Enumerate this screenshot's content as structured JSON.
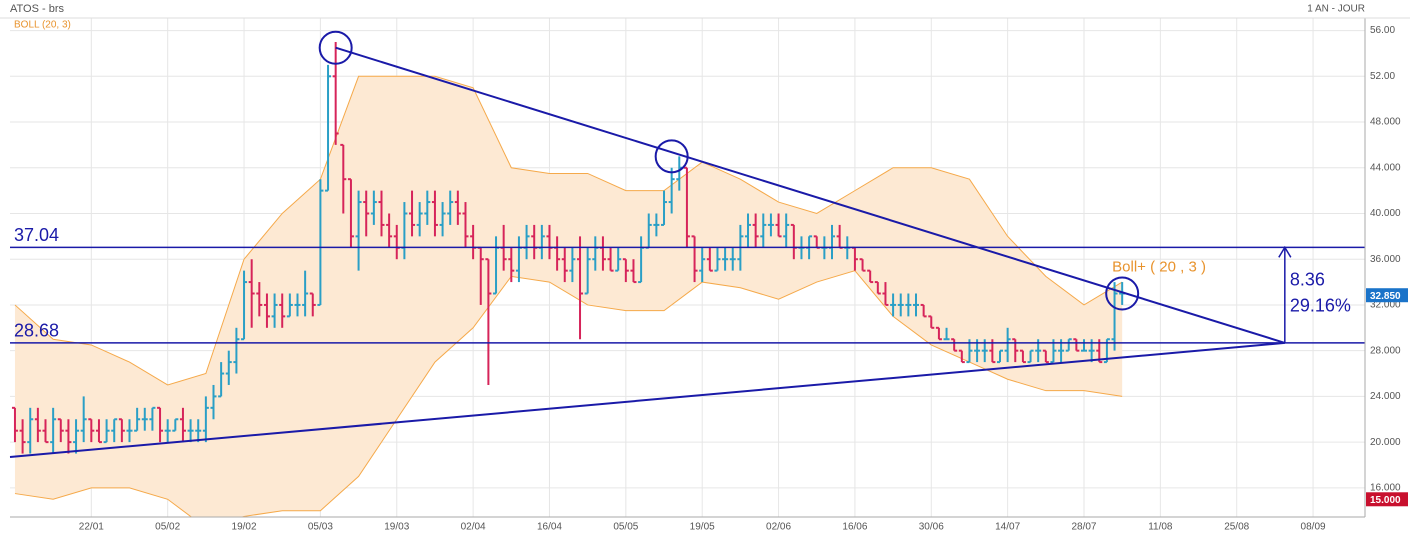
{
  "chart_data": {
    "type": "ohlc",
    "title": "ATOS - brs",
    "indicator_label": "BOLL (20, 3)",
    "period_label": "1 AN - JOUR",
    "up_color": "#2a9fc6",
    "down_color": "#d6245a",
    "band_color": "#f5a94a",
    "band_fill": "#fde9d3",
    "line_color": "#1a1aa8",
    "grid": true,
    "xlim": [
      -0.65,
      176.8
    ],
    "ylim": [
      13.45,
      57.1
    ],
    "xticks": [
      {
        "value": 10,
        "label": "22/01"
      },
      {
        "value": 20,
        "label": "05/02"
      },
      {
        "value": 30,
        "label": "19/02"
      },
      {
        "value": 40,
        "label": "05/03"
      },
      {
        "value": 50,
        "label": "19/03"
      },
      {
        "value": 60,
        "label": "02/04"
      },
      {
        "value": 70,
        "label": "16/04"
      },
      {
        "value": 80,
        "label": "05/05"
      },
      {
        "value": 90,
        "label": "19/05"
      },
      {
        "value": 100,
        "label": "02/06"
      },
      {
        "value": 110,
        "label": "16/06"
      },
      {
        "value": 120,
        "label": "30/06"
      },
      {
        "value": 130,
        "label": "14/07"
      },
      {
        "value": 140,
        "label": "28/07"
      },
      {
        "value": 150,
        "label": "11/08"
      },
      {
        "value": 160,
        "label": "25/08"
      },
      {
        "value": 170,
        "label": "08/09"
      }
    ],
    "yticks": [
      {
        "value": 56,
        "label": "56.00"
      },
      {
        "value": 52,
        "label": "52.00"
      },
      {
        "value": 48,
        "label": "48.000"
      },
      {
        "value": 44,
        "label": "44.000"
      },
      {
        "value": 40,
        "label": "40.000"
      },
      {
        "value": 36,
        "label": "36.000"
      },
      {
        "value": 32,
        "label": "32.000"
      },
      {
        "value": 28,
        "label": "28.000"
      },
      {
        "value": 24,
        "label": "24.000"
      },
      {
        "value": 20,
        "label": "20.000"
      },
      {
        "value": 16,
        "label": "16.000"
      }
    ],
    "ohlc": [
      [
        23,
        23,
        20,
        21
      ],
      [
        21,
        22,
        19,
        20
      ],
      [
        20,
        23,
        19,
        22
      ],
      [
        22,
        23,
        20,
        21
      ],
      [
        21,
        22,
        20,
        20
      ],
      [
        20,
        23,
        19,
        22
      ],
      [
        22,
        22,
        20,
        21
      ],
      [
        21,
        22,
        19,
        20
      ],
      [
        20,
        22,
        19,
        21
      ],
      [
        21,
        24,
        20,
        22
      ],
      [
        22,
        22,
        20,
        21
      ],
      [
        21,
        22,
        20,
        20
      ],
      [
        20,
        22,
        20,
        21
      ],
      [
        21,
        22,
        20,
        22
      ],
      [
        22,
        22,
        20,
        21
      ],
      [
        21,
        22,
        20,
        21
      ],
      [
        21,
        23,
        21,
        22
      ],
      [
        22,
        23,
        21,
        22
      ],
      [
        22,
        23,
        21,
        23
      ],
      [
        23,
        23,
        20,
        21
      ],
      [
        21,
        22,
        20,
        21
      ],
      [
        21,
        22,
        21,
        22
      ],
      [
        22,
        23,
        20,
        21
      ],
      [
        21,
        22,
        20,
        21
      ],
      [
        21,
        22,
        20,
        21
      ],
      [
        21,
        24,
        20,
        23
      ],
      [
        23,
        25,
        22,
        24
      ],
      [
        24,
        27,
        24,
        26
      ],
      [
        26,
        28,
        25,
        27
      ],
      [
        27,
        30,
        26,
        29
      ],
      [
        29,
        35,
        29,
        34
      ],
      [
        34,
        36,
        30,
        33
      ],
      [
        33,
        34,
        31,
        32
      ],
      [
        32,
        33,
        30,
        31
      ],
      [
        31,
        33,
        30,
        32
      ],
      [
        32,
        33,
        30,
        31
      ],
      [
        31,
        33,
        31,
        32
      ],
      [
        32,
        33,
        31,
        32
      ],
      [
        32,
        35,
        31,
        33
      ],
      [
        33,
        33,
        31,
        32
      ],
      [
        32,
        43,
        32,
        42
      ],
      [
        42,
        53,
        42,
        52
      ],
      [
        52,
        55,
        46,
        47
      ],
      [
        46,
        46,
        40,
        43
      ],
      [
        43,
        43,
        37,
        38
      ],
      [
        38,
        42,
        35,
        41
      ],
      [
        41,
        42,
        38,
        40
      ],
      [
        40,
        42,
        39,
        41
      ],
      [
        41,
        42,
        38,
        39
      ],
      [
        39,
        40,
        37,
        38
      ],
      [
        38,
        39,
        36,
        37
      ],
      [
        37,
        41,
        36,
        40
      ],
      [
        40,
        42,
        38,
        39
      ],
      [
        39,
        41,
        38,
        40
      ],
      [
        40,
        42,
        39,
        41
      ],
      [
        41,
        42,
        38,
        39
      ],
      [
        39,
        41,
        38,
        40
      ],
      [
        40,
        42,
        39,
        41
      ],
      [
        41,
        42,
        39,
        40
      ],
      [
        40,
        41,
        37,
        38
      ],
      [
        38,
        39,
        36,
        37
      ],
      [
        37,
        37,
        32,
        36
      ],
      [
        36,
        36,
        25,
        33
      ],
      [
        33,
        38,
        33,
        37
      ],
      [
        37,
        39,
        35,
        36
      ],
      [
        36,
        37,
        34,
        35
      ],
      [
        35,
        38,
        34,
        37
      ],
      [
        37,
        39,
        36,
        38
      ],
      [
        38,
        39,
        36,
        37
      ],
      [
        37,
        39,
        36,
        38
      ],
      [
        38,
        39,
        36,
        37
      ],
      [
        37,
        38,
        35,
        36
      ],
      [
        36,
        37,
        34,
        35
      ],
      [
        35,
        37,
        34,
        36
      ],
      [
        36,
        38,
        29,
        33
      ],
      [
        33,
        37,
        33,
        36
      ],
      [
        36,
        38,
        35,
        37
      ],
      [
        37,
        38,
        35,
        36
      ],
      [
        36,
        37,
        35,
        35
      ],
      [
        35,
        37,
        35,
        36
      ],
      [
        36,
        36,
        34,
        35
      ],
      [
        35,
        36,
        34,
        34
      ],
      [
        34,
        38,
        34,
        37
      ],
      [
        37,
        40,
        37,
        39
      ],
      [
        39,
        40,
        38,
        39
      ],
      [
        39,
        42,
        39,
        41
      ],
      [
        41,
        44,
        40,
        43
      ],
      [
        43,
        45,
        42,
        44
      ],
      [
        44,
        44,
        37,
        38
      ],
      [
        38,
        38,
        34,
        35
      ],
      [
        35,
        37,
        34,
        36
      ],
      [
        36,
        37,
        35,
        35
      ],
      [
        35,
        37,
        35,
        36
      ],
      [
        36,
        37,
        35,
        36
      ],
      [
        36,
        37,
        35,
        36
      ],
      [
        36,
        39,
        35,
        38
      ],
      [
        38,
        40,
        37,
        39
      ],
      [
        39,
        40,
        37,
        38
      ],
      [
        38,
        40,
        37,
        39
      ],
      [
        39,
        40,
        38,
        39
      ],
      [
        39,
        40,
        38,
        38
      ],
      [
        38,
        40,
        37,
        39
      ],
      [
        39,
        39,
        36,
        37
      ],
      [
        37,
        38,
        36,
        37
      ],
      [
        37,
        38,
        36,
        38
      ],
      [
        38,
        38,
        37,
        37
      ],
      [
        37,
        38,
        36,
        37
      ],
      [
        37,
        39,
        36,
        38
      ],
      [
        38,
        39,
        37,
        37
      ],
      [
        37,
        38,
        36,
        37
      ],
      [
        37,
        37,
        35,
        36
      ],
      [
        36,
        36,
        35,
        35
      ],
      [
        35,
        35,
        34,
        34
      ],
      [
        34,
        34,
        33,
        33
      ],
      [
        33,
        34,
        32,
        32
      ],
      [
        32,
        33,
        31,
        32
      ],
      [
        32,
        33,
        31,
        32
      ],
      [
        32,
        33,
        31,
        32
      ],
      [
        32,
        33,
        31,
        32
      ],
      [
        32,
        32,
        31,
        31
      ],
      [
        31,
        31,
        30,
        30
      ],
      [
        30,
        30,
        29,
        29
      ],
      [
        29,
        30,
        29,
        29
      ],
      [
        29,
        29,
        28,
        28
      ],
      [
        28,
        28,
        27,
        27
      ],
      [
        27,
        29,
        27,
        28
      ],
      [
        28,
        29,
        27,
        28
      ],
      [
        28,
        29,
        27,
        28
      ],
      [
        28,
        29,
        27,
        27
      ],
      [
        27,
        28,
        27,
        28
      ],
      [
        28,
        30,
        27,
        29
      ],
      [
        29,
        29,
        27,
        28
      ],
      [
        28,
        28,
        27,
        27
      ],
      [
        27,
        28,
        27,
        28
      ],
      [
        28,
        29,
        27,
        28
      ],
      [
        28,
        28,
        27,
        27
      ],
      [
        27,
        29,
        27,
        28
      ],
      [
        28,
        29,
        27,
        28
      ],
      [
        28,
        29,
        28,
        29
      ],
      [
        29,
        29,
        28,
        28
      ],
      [
        28,
        29,
        28,
        28
      ],
      [
        28,
        29,
        27,
        28
      ],
      [
        28,
        29,
        27,
        27
      ],
      [
        27,
        29,
        27,
        29
      ],
      [
        29,
        34,
        28,
        33
      ],
      [
        33,
        34,
        32,
        33
      ]
    ],
    "bollinger": {
      "x": [
        0,
        5,
        10,
        15,
        20,
        25,
        30,
        35,
        40,
        45,
        50,
        55,
        60,
        65,
        70,
        75,
        80,
        85,
        90,
        95,
        100,
        105,
        110,
        115,
        120,
        125,
        130,
        135,
        140,
        145
      ],
      "upper": [
        32,
        29,
        28.5,
        27,
        25,
        26,
        36,
        40,
        43,
        52,
        52,
        52,
        51,
        44,
        43.5,
        43.5,
        42,
        42,
        44.5,
        43,
        41,
        40,
        42,
        44,
        44,
        43,
        38,
        34.5,
        32,
        34
      ],
      "lower": [
        15.5,
        15,
        16,
        16,
        15,
        12.5,
        13.5,
        14,
        14,
        17,
        22,
        27,
        30,
        34.5,
        34,
        32,
        31.5,
        31.5,
        34,
        33.5,
        32.5,
        34,
        35,
        31,
        28.5,
        27,
        25.5,
        24.5,
        24.5,
        24
      ]
    },
    "boll_label": "Boll+ ( 20 , 3 )",
    "levels": [
      37.04,
      28.68
    ],
    "trend_lines": [
      {
        "x": [
          42,
          166.3
        ],
        "y": [
          54.5,
          28.68
        ]
      },
      {
        "x": [
          -0.65,
          166.3
        ],
        "y": [
          18.7,
          28.68
        ]
      }
    ],
    "circles": {
      "x": [
        42,
        86,
        145
      ],
      "y": [
        54.5,
        45,
        33
      ]
    },
    "range_arrow": {
      "x": 166.3,
      "from": 28.68,
      "to": 37.04,
      "change": 8.36,
      "change_pct": {
        "value": 29.16,
        "label": "29.16%"
      }
    },
    "price_tags": [
      {
        "value": 32.85,
        "label": "32.850",
        "color": "#1a73c9"
      },
      {
        "value": 15,
        "label": "15.000",
        "color": "#c8102e"
      }
    ]
  }
}
